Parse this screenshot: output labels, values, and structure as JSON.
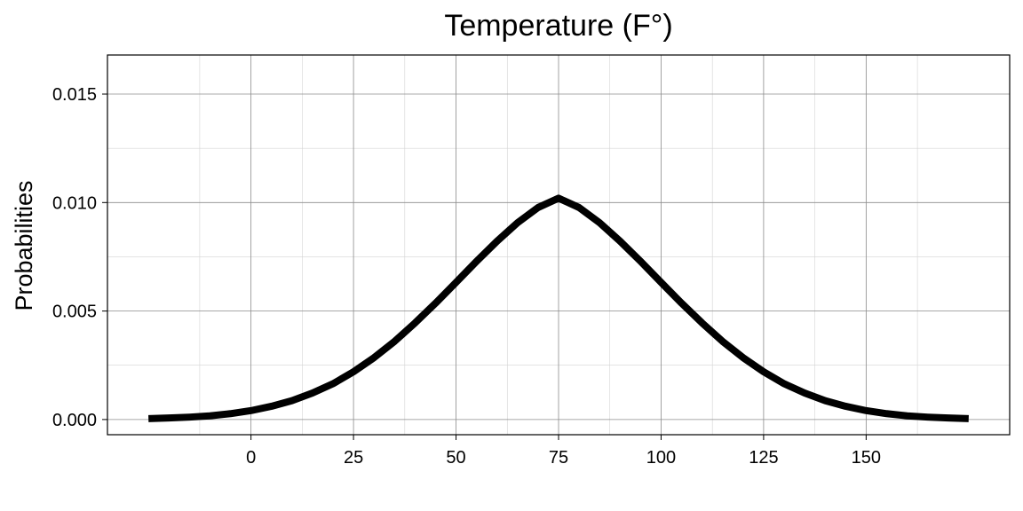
{
  "chart_data": {
    "type": "line",
    "title": "Temperature (F°)",
    "xlabel": "",
    "ylabel": "Probabilities",
    "xlim": [
      -35,
      185
    ],
    "ylim": [
      -0.0007,
      0.0168
    ],
    "x_ticks": [
      0,
      25,
      50,
      75,
      100,
      125,
      150
    ],
    "x_tick_labels": [
      "0",
      "25",
      "50",
      "75",
      "100",
      "125",
      "150"
    ],
    "x_minor_ticks": [
      -12.5,
      12.5,
      37.5,
      62.5,
      87.5,
      112.5,
      137.5,
      162.5
    ],
    "y_ticks": [
      0,
      0.005,
      0.01,
      0.015
    ],
    "y_tick_labels": [
      "0.000",
      "0.005",
      "0.010",
      "0.015"
    ],
    "y_minor_ticks": [
      0.0025,
      0.0075,
      0.0125
    ],
    "grid": true,
    "legend": "none",
    "series": [
      {
        "color": "#000000",
        "x": [
          -25,
          -20,
          -15,
          -10,
          -5,
          0,
          5,
          10,
          15,
          20,
          25,
          30,
          35,
          40,
          45,
          50,
          55,
          60,
          65,
          70,
          75,
          80,
          85,
          90,
          95,
          100,
          105,
          110,
          115,
          120,
          125,
          130,
          135,
          140,
          145,
          150,
          155,
          160,
          165,
          170,
          175
        ],
        "y": [
          4e-05,
          7e-05,
          0.00011,
          0.00017,
          0.00027,
          0.00041,
          0.00061,
          0.00087,
          0.00122,
          0.00165,
          0.0022,
          0.00285,
          0.0036,
          0.00445,
          0.00536,
          0.00632,
          0.00729,
          0.00822,
          0.00907,
          0.00977,
          0.0102,
          0.00977,
          0.00907,
          0.00822,
          0.00729,
          0.00632,
          0.00536,
          0.00445,
          0.0036,
          0.00285,
          0.0022,
          0.00165,
          0.00122,
          0.00087,
          0.00061,
          0.00041,
          0.00027,
          0.00017,
          0.00011,
          7e-05,
          4e-05
        ]
      }
    ]
  }
}
